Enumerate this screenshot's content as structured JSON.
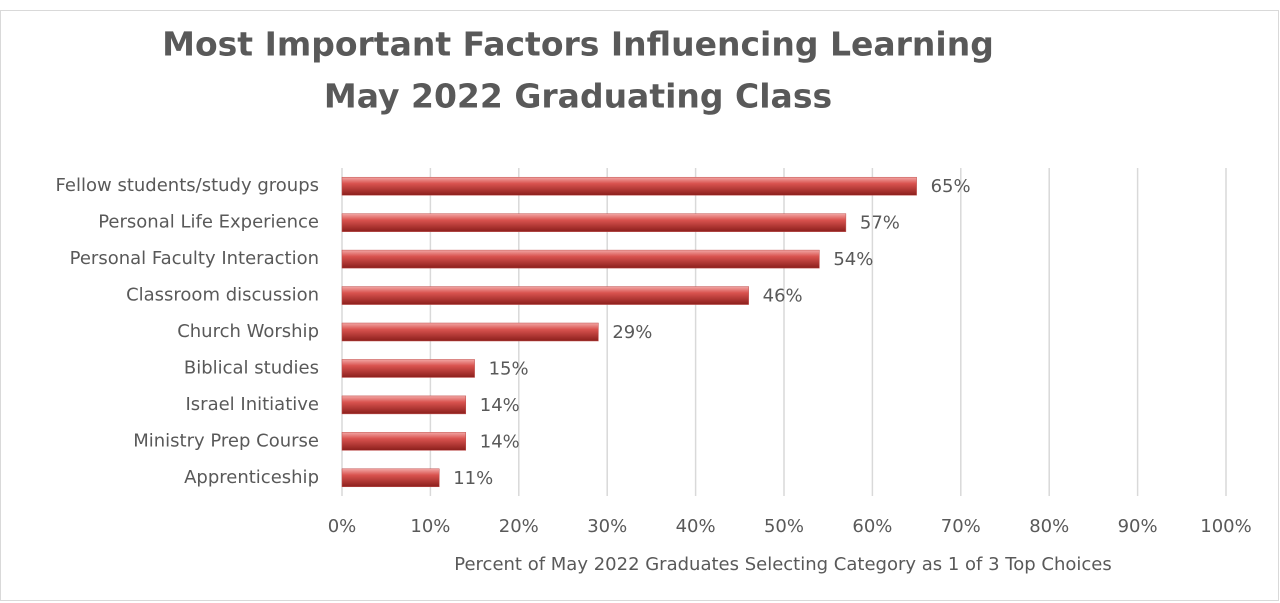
{
  "chart_data": {
    "type": "bar",
    "orientation": "horizontal",
    "title": [
      "Most Important Factors Influencing Learning",
      "May 2022 Graduating Class"
    ],
    "categories": [
      "Fellow students/study groups",
      "Personal Life Experience",
      "Personal Faculty Interaction",
      "Classroom discussion",
      "Church Worship",
      "Biblical studies",
      "Israel Initiative",
      "Ministry Prep Course",
      "Apprenticeship"
    ],
    "values": [
      65,
      57,
      54,
      46,
      29,
      15,
      14,
      14,
      11
    ],
    "value_labels": [
      "65%",
      "57%",
      "54%",
      "46%",
      "29%",
      "15%",
      "14%",
      "14%",
      "11%"
    ],
    "color": "#c0504d",
    "xlim": [
      0,
      100
    ],
    "xticks": [
      {
        "value": 0,
        "label": "0%"
      },
      {
        "value": 10,
        "label": "10%"
      },
      {
        "value": 20,
        "label": "20%"
      },
      {
        "value": 30,
        "label": "30%"
      },
      {
        "value": 40,
        "label": "40%"
      },
      {
        "value": 50,
        "label": "50%"
      },
      {
        "value": 60,
        "label": "60%"
      },
      {
        "value": 70,
        "label": "70%"
      },
      {
        "value": 80,
        "label": "80%"
      },
      {
        "value": 90,
        "label": "90%"
      },
      {
        "value": 100,
        "label": "100%"
      }
    ],
    "xlabel": "Percent of May 2022 Graduates Selecting Category as 1 of 3 Top Choices",
    "grid": true
  }
}
